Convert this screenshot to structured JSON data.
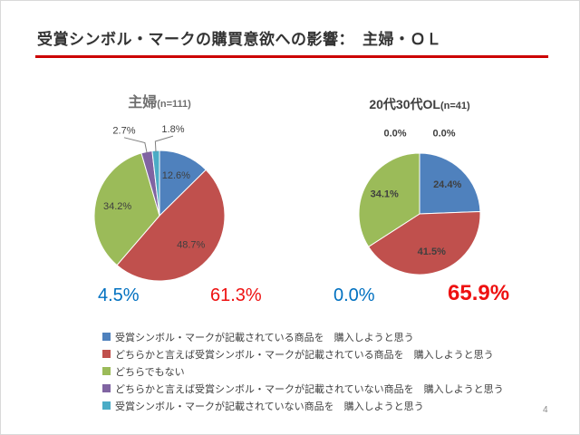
{
  "slide": {
    "title": "受賞シンボル・マークの購買意欲への影響：　主婦・ＯＬ",
    "page_number": "4"
  },
  "colors": {
    "accent_line": "#cc0000",
    "summary_blue": "#0070c0",
    "summary_red": "#ee1111",
    "data_label": "#3f3f3f",
    "leader_line": "#7f7f7f"
  },
  "chart_data": [
    {
      "type": "pie",
      "title": "主婦",
      "subtitle": "(n=111)",
      "categories": [
        "受賞シンボル・マークが記載されている商品を　購入しようと思う",
        "どちらかと言えば受賞シンボル・マークが記載されている商品を　購入しようと思う",
        "どちらでもない",
        "どちらかと言えば受賞シンボル・マークが記載されていない商品を　購入しようと思う",
        "受賞シンボル・マークが記載されていない商品を　購入しようと思う"
      ],
      "values": [
        12.6,
        48.7,
        34.2,
        2.7,
        1.8
      ],
      "labels": [
        "12.6%",
        "48.7%",
        "34.2%",
        "2.7%",
        "1.8%"
      ],
      "colors": [
        "#4f81bd",
        "#c0504d",
        "#9bbb59",
        "#8064a2",
        "#4bacc6"
      ],
      "bold_labels": false,
      "summary": {
        "blue": "4.5%",
        "red": "61.3%"
      }
    },
    {
      "type": "pie",
      "title": "20代30代OL",
      "subtitle": "(n=41)",
      "categories": [
        "受賞シンボル・マークが記載されている商品を　購入しようと思う",
        "どちらかと言えば受賞シンボル・マークが記載されている商品を　購入しようと思う",
        "どちらでもない",
        "どちらかと言えば受賞シンボル・マークが記載されていない商品を　購入しようと思う",
        "受賞シンボル・マークが記載されていない商品を　購入しようと思う"
      ],
      "values": [
        24.4,
        41.5,
        34.1,
        0.0,
        0.0
      ],
      "labels": [
        "24.4%",
        "41.5%",
        "34.1%",
        "0.0%",
        "0.0%"
      ],
      "colors": [
        "#4f81bd",
        "#c0504d",
        "#9bbb59",
        "#8064a2",
        "#4bacc6"
      ],
      "bold_labels": true,
      "summary": {
        "blue": "0.0%",
        "red": "65.9%"
      }
    }
  ],
  "legend": {
    "items": [
      {
        "label": "受賞シンボル・マークが記載されている商品を　購入しようと思う",
        "color": "#4f81bd"
      },
      {
        "label": "どちらかと言えば受賞シンボル・マークが記載されている商品を　購入しようと思う",
        "color": "#c0504d"
      },
      {
        "label": "どちらでもない",
        "color": "#9bbb59"
      },
      {
        "label": "どちらかと言えば受賞シンボル・マークが記載されていない商品を　購入しようと思う",
        "color": "#8064a2"
      },
      {
        "label": "受賞シンボル・マークが記載されていない商品を　購入しようと思う",
        "color": "#4bacc6"
      }
    ]
  }
}
